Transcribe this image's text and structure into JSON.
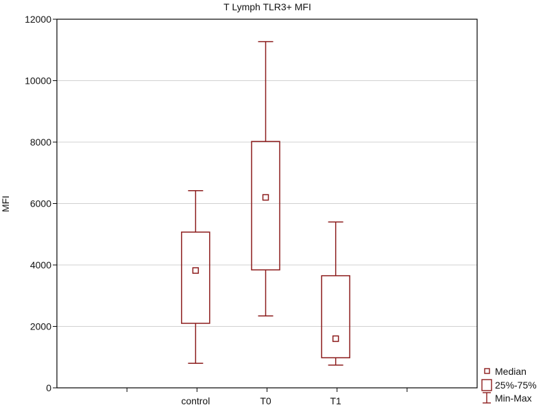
{
  "chart_data": {
    "type": "box",
    "title": "T Lymph TLR3+ MFI",
    "xlabel": "",
    "ylabel": "MFI",
    "ylim": [
      0,
      12000
    ],
    "yticks": [
      0,
      2000,
      4000,
      6000,
      8000,
      10000,
      12000
    ],
    "grid": true,
    "legend_position": "bottom-right",
    "categories": [
      "control",
      "T0",
      "T1"
    ],
    "series": [
      {
        "category": "control",
        "min": 800,
        "q1": 2100,
        "median": 3820,
        "q3": 5070,
        "max": 6420
      },
      {
        "category": "T0",
        "min": 2340,
        "q1": 3840,
        "median": 6200,
        "q3": 8020,
        "max": 11270
      },
      {
        "category": "T1",
        "min": 740,
        "q1": 980,
        "median": 1600,
        "q3": 3650,
        "max": 5400
      }
    ],
    "legend": [
      {
        "symbol": "median",
        "label": "Median"
      },
      {
        "symbol": "box",
        "label": "25%-75%"
      },
      {
        "symbol": "whisker",
        "label": "Min-Max"
      }
    ],
    "colors": {
      "box": "#8b1a1a",
      "grid": "#d0d0d0",
      "frame": "#000000"
    }
  }
}
